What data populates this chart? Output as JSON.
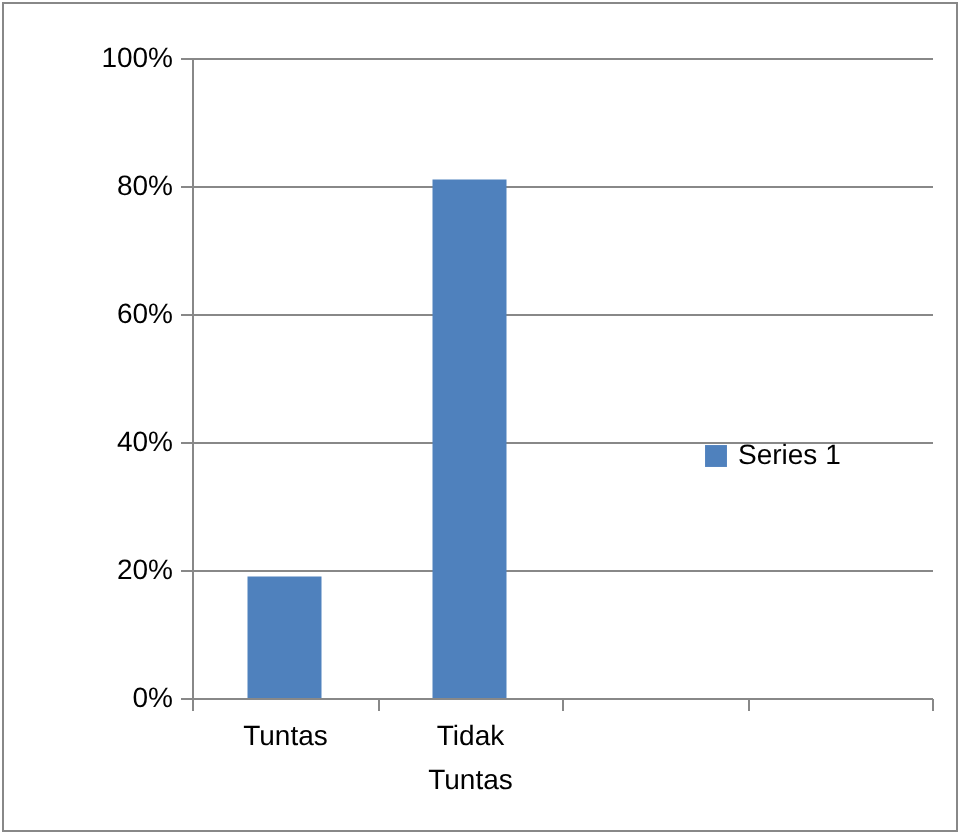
{
  "chart_data": {
    "type": "bar",
    "categories": [
      "Tuntas",
      "Tidak Tuntas",
      null,
      null
    ],
    "series": [
      {
        "name": "Series 1",
        "color": "#4f81bd",
        "values": [
          19,
          81,
          null,
          null
        ]
      }
    ],
    "ylim": [
      0,
      100
    ],
    "yticks": [
      {
        "value": 0,
        "label": "0%"
      },
      {
        "value": 20,
        "label": "20%"
      },
      {
        "value": 40,
        "label": "40%"
      },
      {
        "value": 60,
        "label": "60%"
      },
      {
        "value": 80,
        "label": "80%"
      },
      {
        "value": 100,
        "label": "100%"
      }
    ],
    "grid": "y",
    "legend": "right"
  }
}
